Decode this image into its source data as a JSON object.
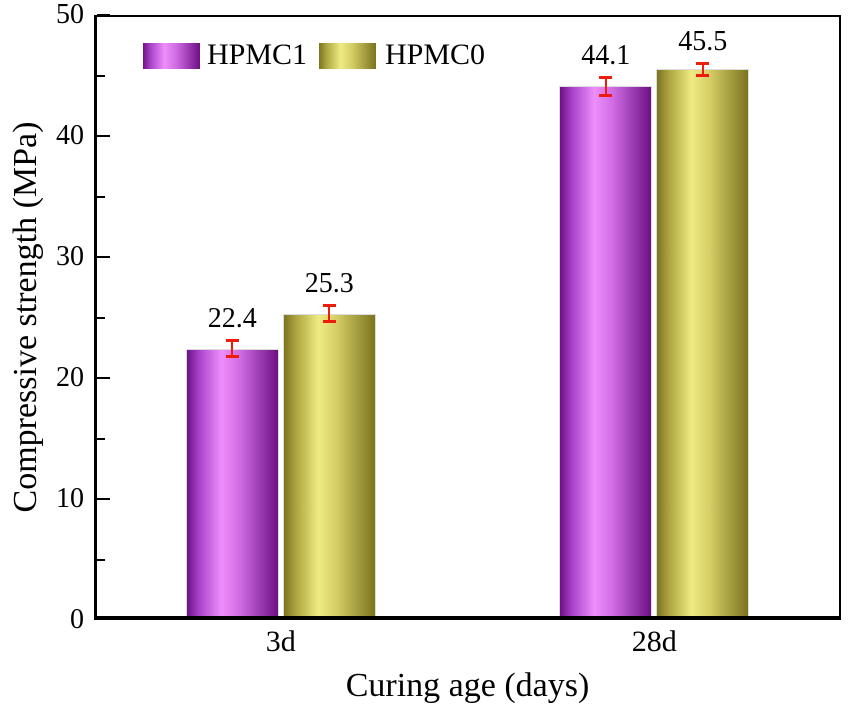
{
  "chart_data": {
    "type": "bar",
    "title": "",
    "xlabel": "Curing age (days)",
    "ylabel": "Compressive strength (MPa)",
    "categories": [
      "3d",
      "28d"
    ],
    "series": [
      {
        "name": "HPMC1",
        "values": [
          22.4,
          44.1
        ],
        "errors": [
          0.7,
          0.8
        ],
        "gradient": [
          {
            "pos": 0,
            "color": "#6d1184"
          },
          {
            "pos": 14,
            "color": "#ab44cc"
          },
          {
            "pos": 38,
            "color": "#ee8efb"
          },
          {
            "pos": 58,
            "color": "#d16ce4"
          },
          {
            "pos": 100,
            "color": "#6d1184"
          }
        ]
      },
      {
        "name": "HPMC0",
        "values": [
          25.3,
          45.5
        ],
        "errors": [
          0.7,
          0.5
        ],
        "gradient": [
          {
            "pos": 0,
            "color": "#7a741e"
          },
          {
            "pos": 14,
            "color": "#b0a743"
          },
          {
            "pos": 38,
            "color": "#efeb82"
          },
          {
            "pos": 58,
            "color": "#d6cd66"
          },
          {
            "pos": 100,
            "color": "#7a741e"
          }
        ]
      }
    ],
    "data_labels": [
      "22.4",
      "25.3",
      "44.1",
      "45.5"
    ],
    "ylim": [
      0,
      50
    ],
    "yticks_major": [
      0,
      10,
      20,
      30,
      40,
      50
    ],
    "yticks_minor": [
      5,
      15,
      25,
      35,
      45
    ],
    "grid": false,
    "legend_position": "top-inside",
    "error_bar_color": "#ed1c0c",
    "axis_color": "#000000",
    "background_color": "#ffffff"
  }
}
